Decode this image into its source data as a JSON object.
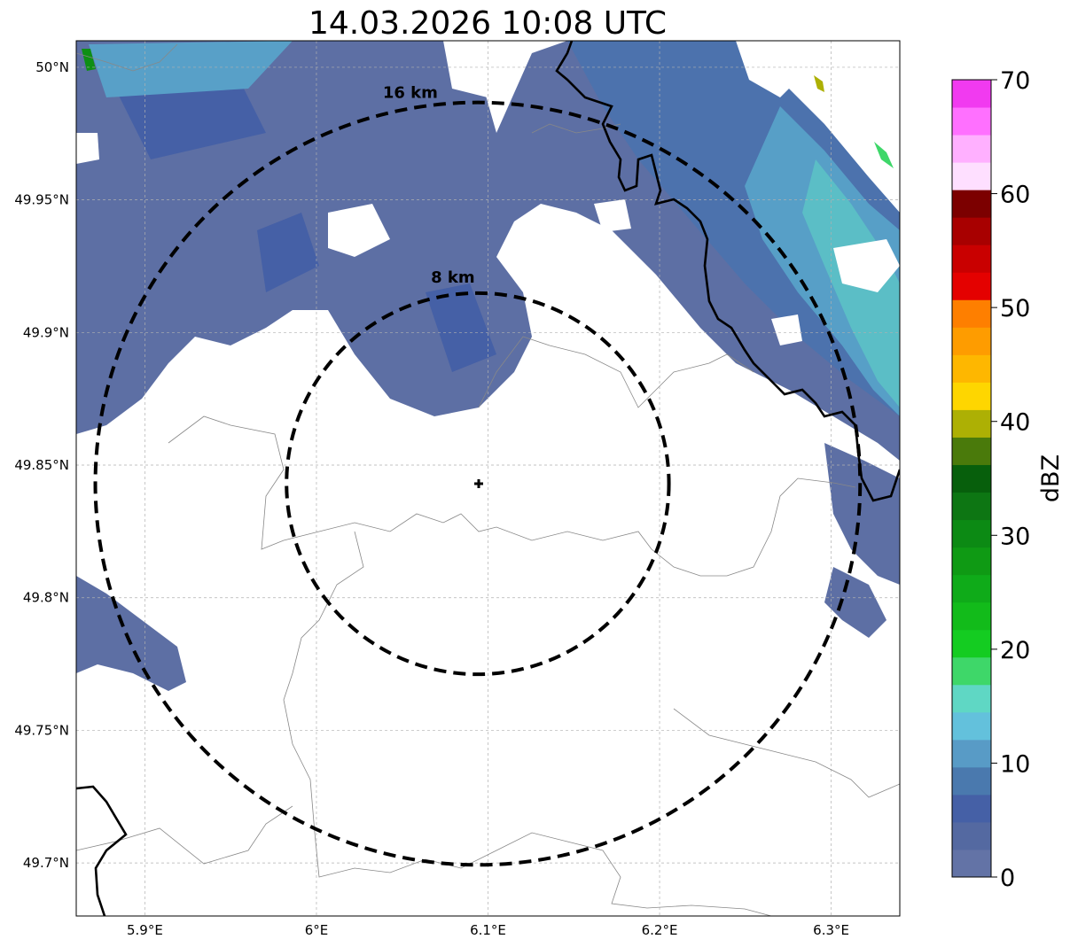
{
  "title": "14.03.2026 10:08 UTC",
  "map": {
    "lon_range": [
      5.86,
      6.34
    ],
    "lat_range": [
      49.68,
      50.01
    ],
    "radar_site": {
      "lon": 6.094,
      "lat": 49.843
    },
    "lon_ticks": [
      {
        "value": 5.9,
        "label": "5.9°E"
      },
      {
        "value": 6.0,
        "label": "6°E"
      },
      {
        "value": 6.1,
        "label": "6.1°E"
      },
      {
        "value": 6.2,
        "label": "6.2°E"
      },
      {
        "value": 6.3,
        "label": "6.3°E"
      }
    ],
    "lat_ticks": [
      {
        "value": 50.0,
        "label": "50°N"
      },
      {
        "value": 49.95,
        "label": "49.95°N"
      },
      {
        "value": 49.9,
        "label": "49.9°N"
      },
      {
        "value": 49.85,
        "label": "49.85°N"
      },
      {
        "value": 49.8,
        "label": "49.8°N"
      },
      {
        "value": 49.75,
        "label": "49.75°N"
      },
      {
        "value": 49.7,
        "label": "49.7°N"
      }
    ],
    "range_rings": [
      {
        "radius_km": 8,
        "label": "8 km"
      },
      {
        "radius_km": 16,
        "label": "16 km"
      }
    ]
  },
  "colorbar": {
    "label": "dBZ",
    "range": [
      0,
      70
    ],
    "tick_values": [
      0,
      10,
      20,
      30,
      40,
      50,
      60,
      70
    ],
    "tick_labels": [
      "0",
      "10",
      "20",
      "30",
      "40",
      "50",
      "60",
      "70"
    ],
    "colors": [
      "#6373a6",
      "#5469a1",
      "#4560a6",
      "#4a79ae",
      "#589bc6",
      "#63c1dc",
      "#5fd7c4",
      "#3ed769",
      "#14cc21",
      "#12bb1a",
      "#0fab19",
      "#0f9a14",
      "#0c8a14",
      "#0d7613",
      "#075f0c",
      "#4a7a0b",
      "#adb004",
      "#fed600",
      "#feb700",
      "#fe9c00",
      "#fe7f00",
      "#e40100",
      "#c90000",
      "#a80000",
      "#7c0000",
      "#fedfff",
      "#ffb0ff",
      "#ff70ff",
      "#f13af0"
    ]
  }
}
